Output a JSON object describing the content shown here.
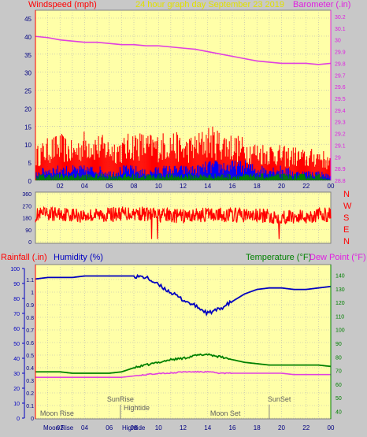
{
  "header": {
    "left_title": "Windspeed (mph)",
    "center_title": "24 hour graph day   September 23 2019",
    "right_title": "Barometer (.in)"
  },
  "colors": {
    "plot_bg": "#ffffa8",
    "frame_bg": "#c8c8c8",
    "wind_gust": "#ff0000",
    "wind_avg": "#0000ff",
    "wind_green": "#008000",
    "barometer": "#e040e0",
    "direction": "#ff0000",
    "humidity": "#0000c0",
    "temperature": "#008000",
    "dewpoint": "#e040e0",
    "left_axis": "#ff0000",
    "right_axis_top": "#e020e0",
    "right_axis_bottom": "#008000",
    "humidity_axis": "#0000c0",
    "grid": "#b4b4b4",
    "tick_text": "#000080"
  },
  "chart_data": [
    {
      "type": "line",
      "name": "wind-barometer",
      "x_ticks": [
        "02",
        "04",
        "06",
        "08",
        "10",
        "12",
        "14",
        "16",
        "18",
        "20",
        "22",
        "00"
      ],
      "left_axis": {
        "label": "Windspeed (mph)",
        "ticks": [
          "0",
          "5",
          "10",
          "15",
          "20",
          "25",
          "30",
          "35",
          "40",
          "45"
        ],
        "range": [
          0,
          45
        ]
      },
      "right_axis": {
        "label": "Barometer (.in)",
        "ticks": [
          "28.8",
          "28.9",
          "29",
          "29.1",
          "29.2",
          "29.3",
          "29.4",
          "29.5",
          "29.6",
          "29.7",
          "29.8",
          "29.9",
          "30",
          "30.1",
          "30.2"
        ],
        "range": [
          28.8,
          30.2
        ]
      },
      "series": [
        {
          "role": "barometer",
          "axis": "right",
          "x": [
            0,
            1,
            2,
            3,
            4,
            5,
            6,
            7,
            8,
            9,
            10,
            11,
            12,
            13,
            14,
            15,
            16,
            17,
            18,
            19,
            20,
            21,
            22,
            23,
            24
          ],
          "values": [
            30.03,
            30.02,
            30.0,
            29.99,
            29.98,
            29.98,
            29.97,
            29.96,
            29.96,
            29.95,
            29.95,
            29.94,
            29.93,
            29.92,
            29.9,
            29.88,
            29.86,
            29.84,
            29.82,
            29.81,
            29.8,
            29.8,
            29.8,
            29.79,
            29.8
          ]
        },
        {
          "role": "gust",
          "axis": "left",
          "x": [
            0,
            1,
            2,
            3,
            4,
            5,
            6,
            7,
            8,
            9,
            10,
            11,
            12,
            13,
            14,
            15,
            16,
            17,
            18,
            19,
            20,
            21,
            22,
            23,
            24
          ],
          "values": [
            8,
            10,
            11,
            9,
            12,
            11,
            10,
            10,
            12,
            11,
            11,
            12,
            10,
            11,
            13,
            12,
            11,
            10,
            9,
            9,
            8,
            8,
            7,
            8,
            5
          ]
        },
        {
          "role": "average",
          "axis": "left",
          "x": [
            0,
            1,
            2,
            3,
            4,
            5,
            6,
            7,
            8,
            9,
            10,
            11,
            12,
            13,
            14,
            15,
            16,
            17,
            18,
            19,
            20,
            21,
            22,
            23,
            24
          ],
          "values": [
            2,
            3,
            3,
            3,
            3,
            3,
            2,
            3,
            3,
            2,
            3,
            3,
            3,
            3,
            4,
            4,
            4,
            4,
            3,
            3,
            3,
            2,
            2,
            2,
            1
          ]
        },
        {
          "role": "low",
          "axis": "left",
          "x": [
            0,
            1,
            2,
            3,
            4,
            5,
            6,
            7,
            8,
            9,
            10,
            11,
            12,
            13,
            14,
            15,
            16,
            17,
            18,
            19,
            20,
            21,
            22,
            23,
            24
          ],
          "values": [
            1,
            1,
            1,
            1,
            1,
            1,
            1,
            1,
            1,
            1,
            1,
            1,
            1,
            1,
            1,
            1,
            1,
            1,
            1,
            1,
            1,
            1,
            1,
            1,
            0
          ]
        }
      ]
    },
    {
      "type": "line",
      "name": "wind-direction",
      "left_axis": {
        "ticks": [
          "0",
          "90",
          "180",
          "270",
          "360"
        ],
        "range": [
          0,
          360
        ]
      },
      "right_labels": [
        "N",
        "W",
        "S",
        "E",
        "N"
      ],
      "series": [
        {
          "role": "direction",
          "x": [
            0,
            2,
            4,
            6,
            8,
            10,
            12,
            14,
            16,
            18,
            20,
            22,
            24
          ],
          "values": [
            200,
            210,
            195,
            205,
            215,
            200,
            190,
            205,
            200,
            195,
            185,
            190,
            205
          ]
        }
      ]
    },
    {
      "type": "line",
      "name": "temp-humidity-rain",
      "x_ticks": [
        "02",
        "04",
        "06",
        "08",
        "10",
        "12",
        "14",
        "16",
        "18",
        "20",
        "22",
        "00"
      ],
      "header": {
        "rain": "Rainfall (.in)",
        "humidity": "Humidity (%)",
        "temperature": "Temperature (°F)",
        "dewpoint": "Dew Point (°F)"
      },
      "outer_left_axis": {
        "ticks": [
          "0",
          "10",
          "20",
          "30",
          "40",
          "50",
          "60",
          "70",
          "80",
          "90",
          "100"
        ],
        "range": [
          0,
          100
        ]
      },
      "inner_left_axis": {
        "ticks": [
          "0",
          "0.1",
          "0.2",
          "0.3",
          "0.4",
          "0.5",
          "0.6",
          "0.7",
          "0.8",
          "0.9",
          "1",
          "1.1"
        ],
        "range": [
          0,
          1.1
        ]
      },
      "right_axis": {
        "ticks": [
          "40",
          "50",
          "60",
          "70",
          "80",
          "90",
          "100",
          "110",
          "120",
          "130",
          "140"
        ],
        "range": [
          35,
          145
        ]
      },
      "series": [
        {
          "role": "humidity",
          "axis": "outer_left",
          "x": [
            0,
            1,
            2,
            3,
            4,
            5,
            6,
            7,
            8,
            9,
            10,
            11,
            12,
            13,
            14,
            15,
            16,
            17,
            18,
            19,
            20,
            21,
            22,
            23,
            24
          ],
          "values": [
            93,
            94,
            94,
            94,
            95,
            95,
            95,
            95,
            95,
            94,
            89,
            84,
            79,
            75,
            70,
            73,
            78,
            83,
            86,
            87,
            87,
            86,
            86,
            87,
            88
          ]
        },
        {
          "role": "temperature",
          "axis": "right",
          "x": [
            0,
            1,
            2,
            3,
            4,
            5,
            6,
            7,
            8,
            9,
            10,
            11,
            12,
            13,
            14,
            15,
            16,
            17,
            18,
            19,
            20,
            21,
            22,
            23,
            24
          ],
          "values": [
            69,
            69,
            69,
            68,
            68,
            68,
            68,
            69,
            72,
            74,
            76,
            78,
            79,
            81,
            82,
            80,
            78,
            76,
            75,
            74,
            74,
            74,
            74,
            74,
            73
          ]
        },
        {
          "role": "dewpoint",
          "axis": "right",
          "x": [
            0,
            1,
            2,
            3,
            4,
            5,
            6,
            7,
            8,
            9,
            10,
            11,
            12,
            13,
            14,
            15,
            16,
            17,
            18,
            19,
            20,
            21,
            22,
            23,
            24
          ],
          "values": [
            65,
            65,
            65,
            65,
            65,
            65,
            65,
            65,
            66,
            67,
            68,
            68,
            69,
            69,
            69,
            68,
            68,
            68,
            68,
            68,
            68,
            67,
            67,
            67,
            67
          ]
        }
      ],
      "annotations": [
        {
          "text": "SunRise",
          "x": 6.9
        },
        {
          "text": "Hightide",
          "x": 7.1
        },
        {
          "text": "Moon Rise",
          "x": 0.5
        },
        {
          "text": "Moon Set",
          "x": 14.2
        },
        {
          "text": "SunSet",
          "x": 19.0
        }
      ],
      "bottom_labels": [
        "Moon Rise",
        "Hightide"
      ]
    }
  ]
}
